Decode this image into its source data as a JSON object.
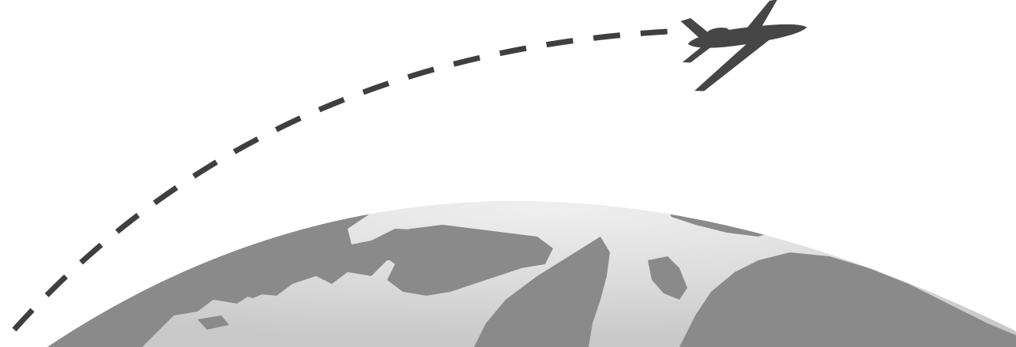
{
  "illustration": {
    "subject": "airplane-flight-path-over-globe",
    "icons": [
      "airplane-icon",
      "globe-icon"
    ],
    "colors": {
      "background": "#ffffff",
      "ocean_light": "#d7d7d7",
      "ocean_highlight": "#ececec",
      "land": "#8a8a8a",
      "land_dark": "#7d7d7d",
      "path_dash": "#3f3f3f",
      "airplane": "#464646"
    },
    "flight_path_style": "dashed"
  }
}
